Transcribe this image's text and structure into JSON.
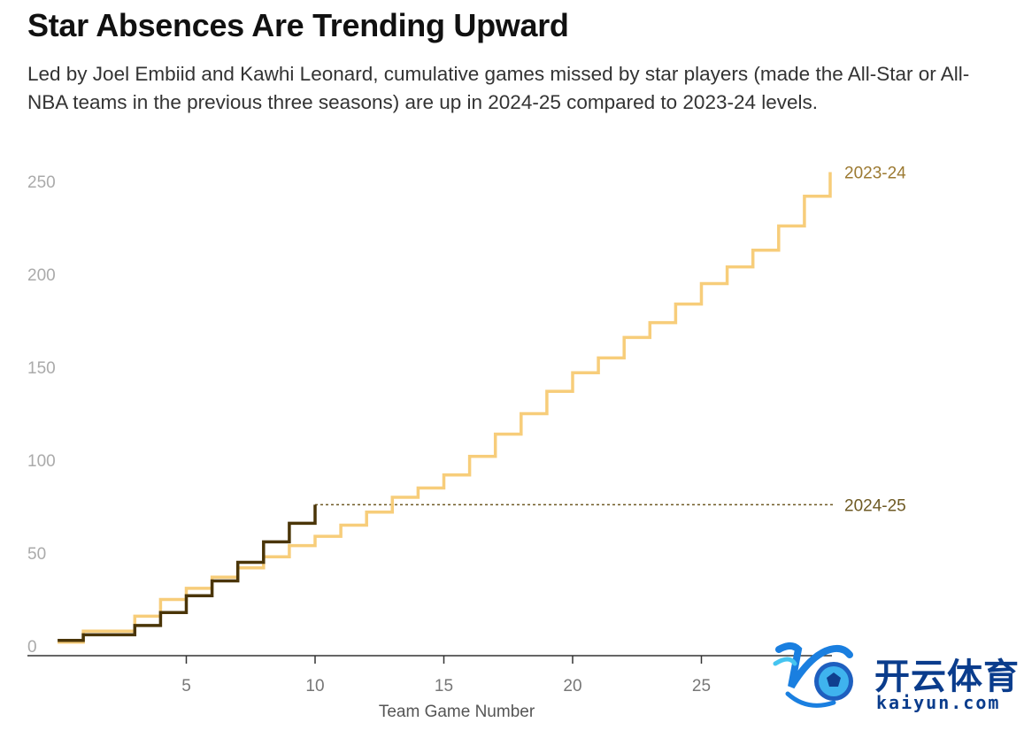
{
  "title": "Star Absences Are Trending Upward",
  "subtitle": "Led by Joel Embiid and Kawhi Leonard, cumulative games missed by star players (made the All-Star or All-NBA teams in the previous three seasons) are up in 2024-25 compared to 2023-24 levels.",
  "logo": {
    "cn": "开云体育",
    "en": "kaiyun.com"
  },
  "colors": {
    "s2324": "#f7cd7a",
    "s2425": "#4a3508",
    "label2324": "#9c7a32",
    "label2425": "#6e5a24",
    "axis": "#333333"
  },
  "chart_data": {
    "type": "line",
    "step": true,
    "xlabel": "Team Game Number",
    "ylabel": "",
    "xlim": [
      0,
      31
    ],
    "ylim": [
      0,
      260
    ],
    "xticks": [
      5,
      10,
      15,
      20,
      25
    ],
    "yticks": [
      0,
      50,
      100,
      150,
      200,
      250
    ],
    "series": [
      {
        "name": "2023-24",
        "x": [
          1,
          2,
          3,
          4,
          5,
          6,
          7,
          8,
          9,
          10,
          11,
          12,
          13,
          14,
          15,
          16,
          17,
          18,
          19,
          20,
          21,
          22,
          23,
          24,
          25,
          26,
          27,
          28,
          29,
          30
        ],
        "y": [
          2,
          8,
          16,
          25,
          31,
          37,
          42,
          48,
          54,
          59,
          65,
          72,
          80,
          85,
          92,
          102,
          114,
          125,
          137,
          147,
          155,
          166,
          174,
          184,
          195,
          204,
          213,
          226,
          242,
          255
        ]
      },
      {
        "name": "2024-25",
        "x": [
          1,
          2,
          3,
          4,
          5,
          6,
          7,
          8,
          9,
          10
        ],
        "y": [
          3,
          6,
          11,
          18,
          27,
          35,
          45,
          56,
          66,
          76
        ]
      }
    ]
  }
}
